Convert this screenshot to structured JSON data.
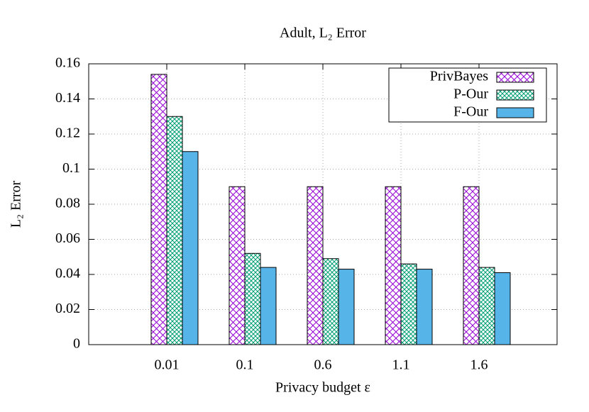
{
  "chart_data": {
    "type": "bar",
    "title": "Adult, L₂ Error",
    "x_label": "Privacy budget ε",
    "y_label": "L₂ Error",
    "categories": [
      "0.01",
      "0.1",
      "0.6",
      "1.1",
      "1.6"
    ],
    "series": [
      {
        "name": "PrivBayes",
        "color": "#9400d3",
        "pattern": "crosshatch",
        "values": [
          0.154,
          0.09,
          0.09,
          0.09,
          0.09
        ]
      },
      {
        "name": "P-Our",
        "color": "#009e73",
        "pattern": "fine-crosshatch",
        "values": [
          0.13,
          0.052,
          0.049,
          0.046,
          0.044
        ]
      },
      {
        "name": "F-Our",
        "color": "#56b4e9",
        "pattern": "solid",
        "values": [
          0.11,
          0.044,
          0.043,
          0.043,
          0.041
        ]
      }
    ],
    "ylim": [
      0,
      0.16
    ],
    "yticks": [
      0,
      0.02,
      0.04,
      0.06,
      0.08,
      0.1,
      0.12,
      0.14,
      0.16
    ],
    "grid": true,
    "legend": "top-right"
  }
}
